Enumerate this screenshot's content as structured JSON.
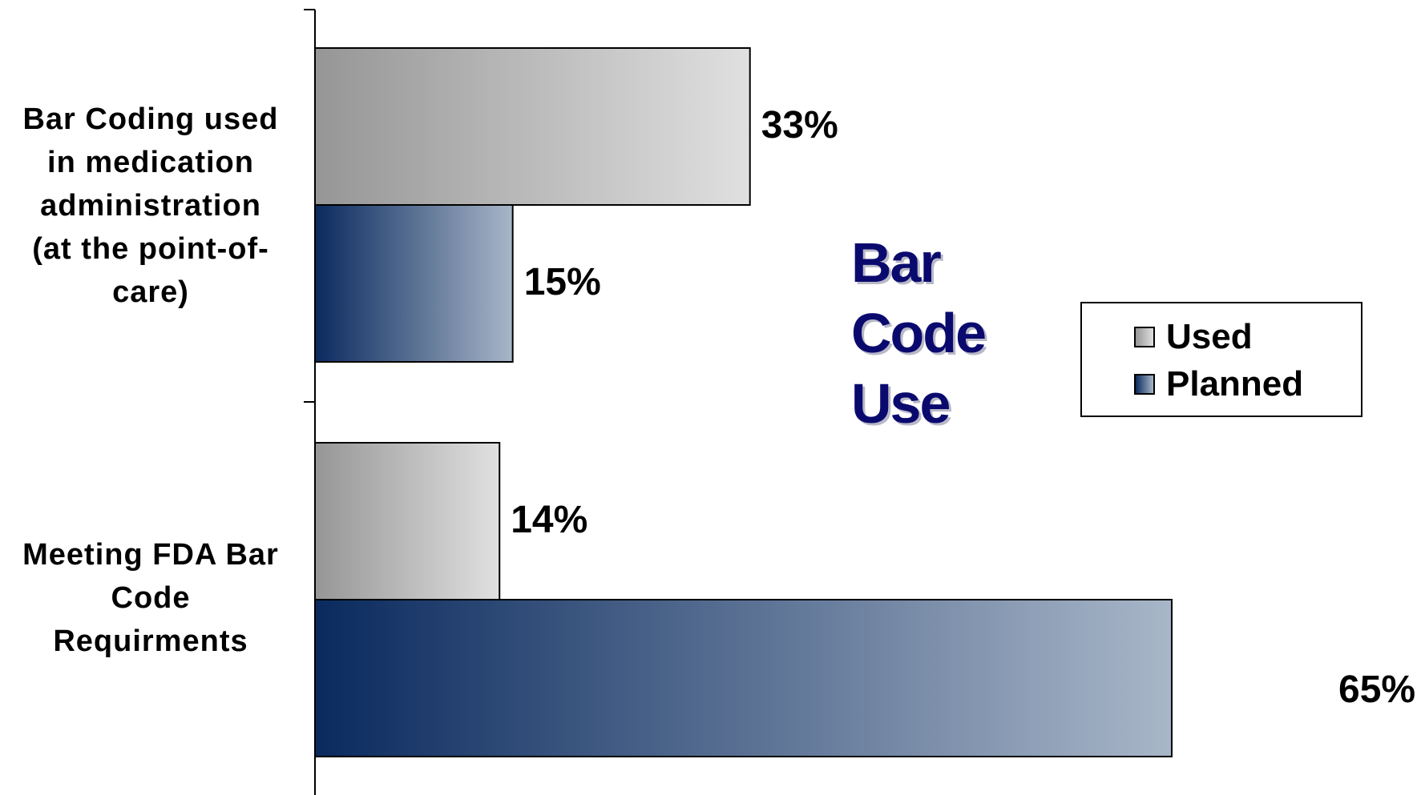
{
  "chart_data": {
    "type": "bar",
    "orientation": "horizontal",
    "title": "Bar Code Use",
    "title_lines": [
      "Bar",
      "Code",
      "Use"
    ],
    "categories": [
      "Bar Coding used in medication administration (at the point-of-care)",
      "Meeting FDA Bar Code Requirments"
    ],
    "category_lines": [
      [
        "Bar Coding used",
        "in medication",
        "administration",
        "(at the point-of-",
        "care)"
      ],
      [
        "Meeting FDA Bar",
        "Code",
        "Requirments"
      ]
    ],
    "series": [
      {
        "name": "Used",
        "values": [
          33,
          14
        ],
        "value_labels": [
          "33%",
          "14%"
        ]
      },
      {
        "name": "Planned",
        "values": [
          15,
          65
        ],
        "value_labels": [
          "15%",
          "65%"
        ]
      }
    ],
    "unit": "%",
    "xlim": [
      0,
      100
    ],
    "grid": false,
    "legend": "right"
  },
  "colors": {
    "used_start": "#969696",
    "used_end": "#e0e0e0",
    "planned_start": "#0a2a5e",
    "planned_end": "#a8b6c8",
    "title": "#0a0a6e"
  }
}
